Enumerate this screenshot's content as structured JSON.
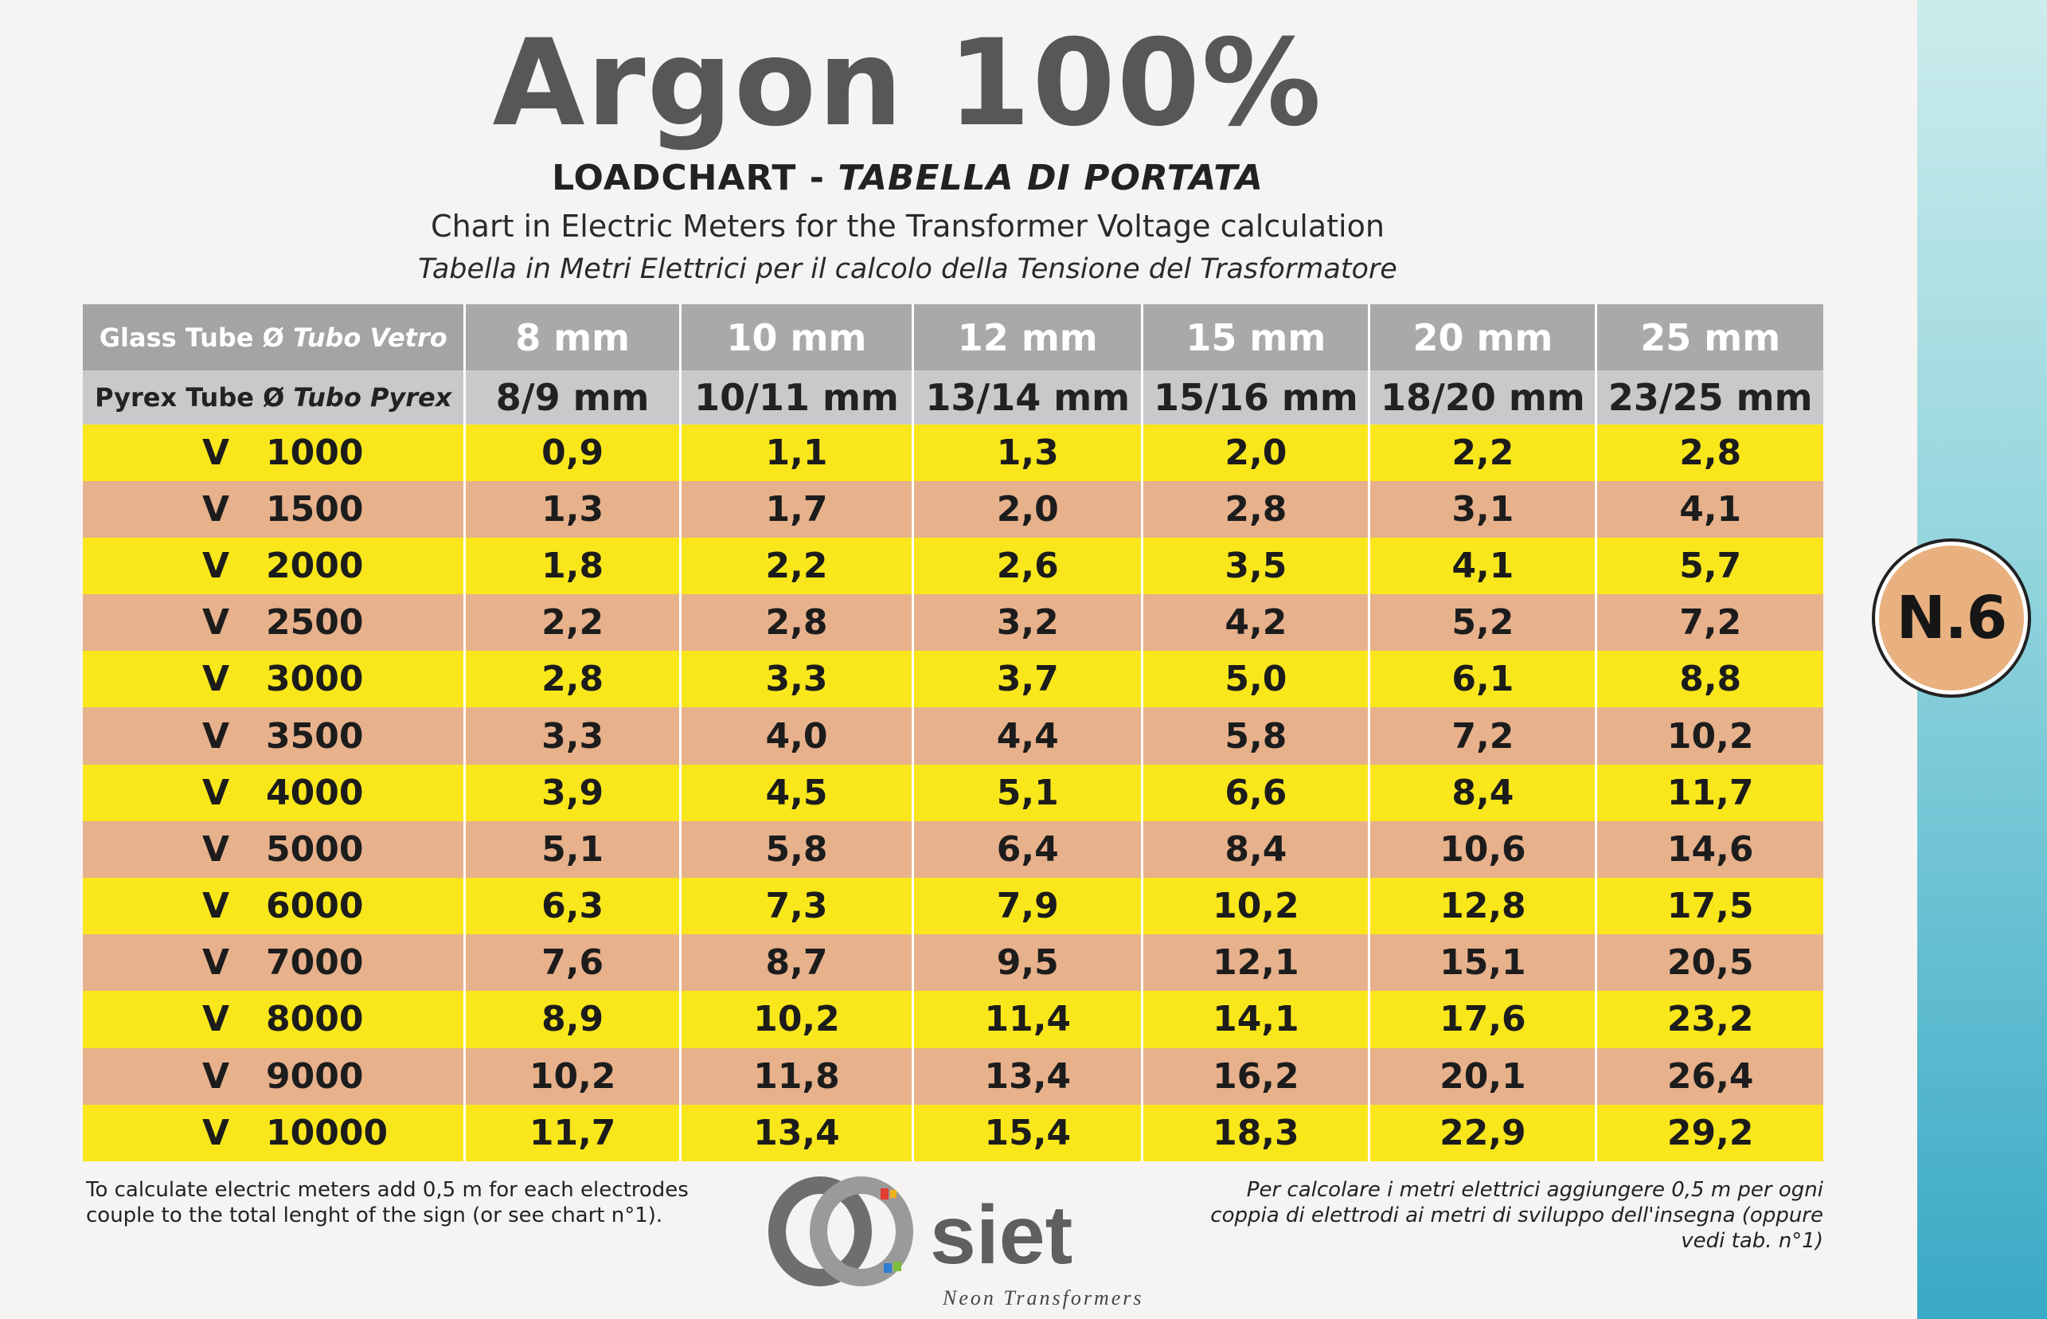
{
  "title": "Argon 100%",
  "subtitle": {
    "part1": "LOADCHART - ",
    "part2": "TABELLA DI PORTATA"
  },
  "line1": "Chart in Electric Meters for the Transformer Voltage calculation",
  "line2": "Tabella in Metri Elettrici per il calcolo della Tensione del Trasformatore",
  "header": {
    "glass_label": "Glass Tube Ø ",
    "glass_label_it": "Tubo Vetro",
    "pyrex_label": "Pyrex Tube Ø ",
    "pyrex_label_it": "Tubo Pyrex",
    "glass": [
      "8 mm",
      "10 mm",
      "12 mm",
      "15 mm",
      "20 mm",
      "25 mm"
    ],
    "pyrex": [
      "8/9 mm",
      "10/11 mm",
      "13/14 mm",
      "15/16 mm",
      "18/20 mm",
      "23/25 mm"
    ]
  },
  "rows": [
    {
      "v": "V",
      "volt": "1000",
      "vals": [
        "0,9",
        "1,1",
        "1,3",
        "2,0",
        "2,2",
        "2,8"
      ]
    },
    {
      "v": "V",
      "volt": "1500",
      "vals": [
        "1,3",
        "1,7",
        "2,0",
        "2,8",
        "3,1",
        "4,1"
      ]
    },
    {
      "v": "V",
      "volt": "2000",
      "vals": [
        "1,8",
        "2,2",
        "2,6",
        "3,5",
        "4,1",
        "5,7"
      ]
    },
    {
      "v": "V",
      "volt": "2500",
      "vals": [
        "2,2",
        "2,8",
        "3,2",
        "4,2",
        "5,2",
        "7,2"
      ]
    },
    {
      "v": "V",
      "volt": "3000",
      "vals": [
        "2,8",
        "3,3",
        "3,7",
        "5,0",
        "6,1",
        "8,8"
      ]
    },
    {
      "v": "V",
      "volt": "3500",
      "vals": [
        "3,3",
        "4,0",
        "4,4",
        "5,8",
        "7,2",
        "10,2"
      ]
    },
    {
      "v": "V",
      "volt": "4000",
      "vals": [
        "3,9",
        "4,5",
        "5,1",
        "6,6",
        "8,4",
        "11,7"
      ]
    },
    {
      "v": "V",
      "volt": "5000",
      "vals": [
        "5,1",
        "5,8",
        "6,4",
        "8,4",
        "10,6",
        "14,6"
      ]
    },
    {
      "v": "V",
      "volt": "6000",
      "vals": [
        "6,3",
        "7,3",
        "7,9",
        "10,2",
        "12,8",
        "17,5"
      ]
    },
    {
      "v": "V",
      "volt": "7000",
      "vals": [
        "7,6",
        "8,7",
        "9,5",
        "12,1",
        "15,1",
        "20,5"
      ]
    },
    {
      "v": "V",
      "volt": "8000",
      "vals": [
        "8,9",
        "10,2",
        "11,4",
        "14,1",
        "17,6",
        "23,2"
      ]
    },
    {
      "v": "V",
      "volt": "9000",
      "vals": [
        "10,2",
        "11,8",
        "13,4",
        "16,2",
        "20,1",
        "26,4"
      ]
    },
    {
      "v": "V",
      "volt": "10000",
      "vals": [
        "11,7",
        "13,4",
        "15,4",
        "18,3",
        "22,9",
        "29,2"
      ]
    }
  ],
  "notes": {
    "left": "To calculate electric meters add 0,5 m for each electrodes couple to the total lenght of the sign (or see chart n°1).",
    "right": "Per calcolare i metri elettrici aggiungere 0,5 m per ogni coppia di elettrodi ai metri di sviluppo dell'insegna (oppure vedi tab. n°1)"
  },
  "logo": {
    "brand": "siet",
    "tagline": "Neon Transformers"
  },
  "badge": "N.6",
  "colors": {
    "row_yellow": "#f9e71b",
    "row_orange": "#e7b18c",
    "header_grey": "#a9a9ab",
    "badge_fill": "#e8b17f",
    "sidebar_teal": "#39a9c6"
  }
}
